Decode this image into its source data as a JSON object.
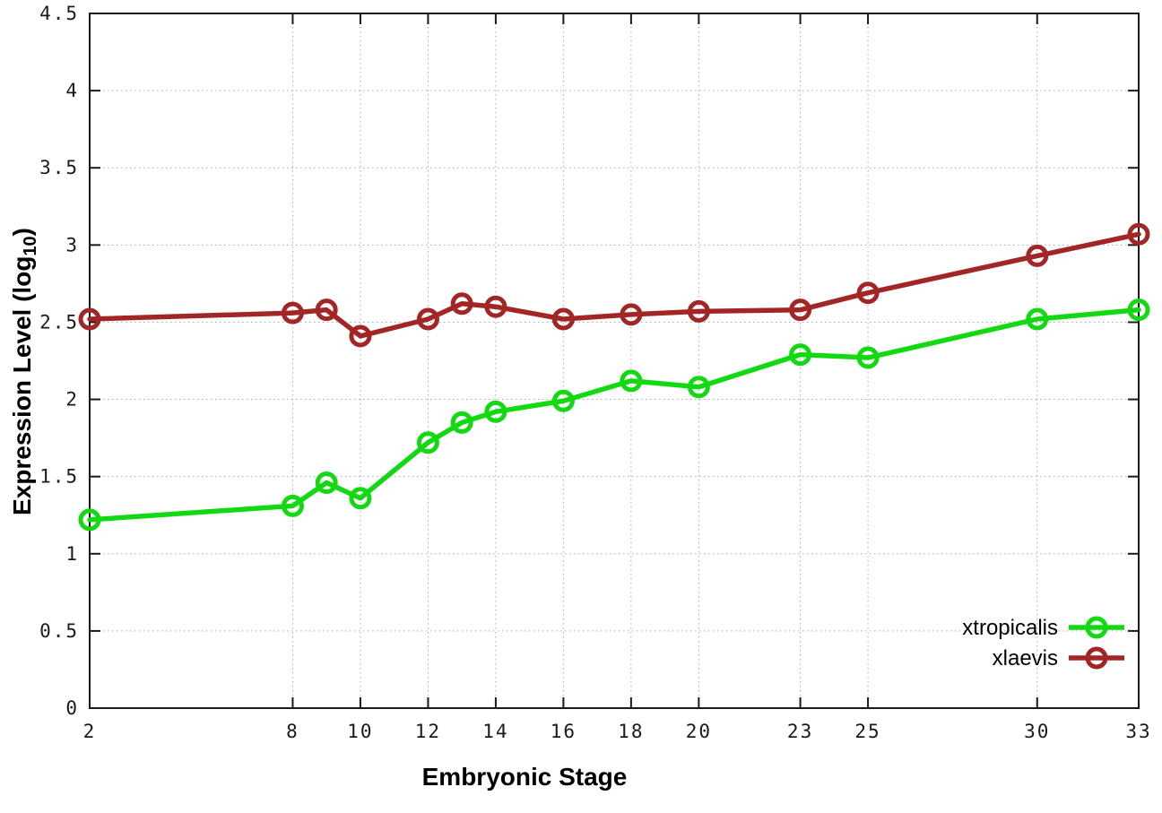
{
  "chart_data": {
    "type": "line",
    "title": "",
    "xlabel": "Embryonic Stage",
    "ylabel": {
      "prefix": "Expression Level (log",
      "sub": "10",
      "suffix": ")"
    },
    "x": [
      2,
      8,
      9,
      10,
      12,
      13,
      14,
      16,
      18,
      20,
      23,
      25,
      30,
      33
    ],
    "x_tick_labels": [
      "2",
      "8",
      "10",
      "12",
      "14",
      "16",
      "18",
      "20",
      "23",
      "25",
      "30",
      "33"
    ],
    "x_ticks": [
      2,
      8,
      10,
      12,
      14,
      16,
      18,
      20,
      23,
      25,
      30,
      33
    ],
    "xlim": [
      2,
      33
    ],
    "y_ticks": [
      0,
      0.5,
      1,
      1.5,
      2,
      2.5,
      3,
      3.5,
      4,
      4.5
    ],
    "y_tick_labels": [
      "0",
      "0.5",
      "1",
      "1.5",
      "2",
      "2.5",
      "3",
      "3.5",
      "4",
      "4.5"
    ],
    "ylim": [
      0,
      4.5
    ],
    "grid": true,
    "legend_position": "bottom-right",
    "series": [
      {
        "name": "xtropicalis",
        "color": "#12d912",
        "values": [
          1.22,
          1.31,
          1.46,
          1.36,
          1.72,
          1.85,
          1.92,
          1.99,
          2.12,
          2.08,
          2.29,
          2.27,
          2.52,
          2.58
        ]
      },
      {
        "name": "xlaevis",
        "color": "#a32626",
        "values": [
          2.52,
          2.56,
          2.58,
          2.41,
          2.52,
          2.62,
          2.6,
          2.52,
          2.55,
          2.57,
          2.58,
          2.69,
          2.93,
          3.07
        ]
      }
    ],
    "colors": {
      "axis": "#1a1a1a",
      "grid": "#aaaaaa",
      "tick_label": "#1a1a1a",
      "axis_title": "#000000",
      "legend_text": "#000000"
    }
  }
}
